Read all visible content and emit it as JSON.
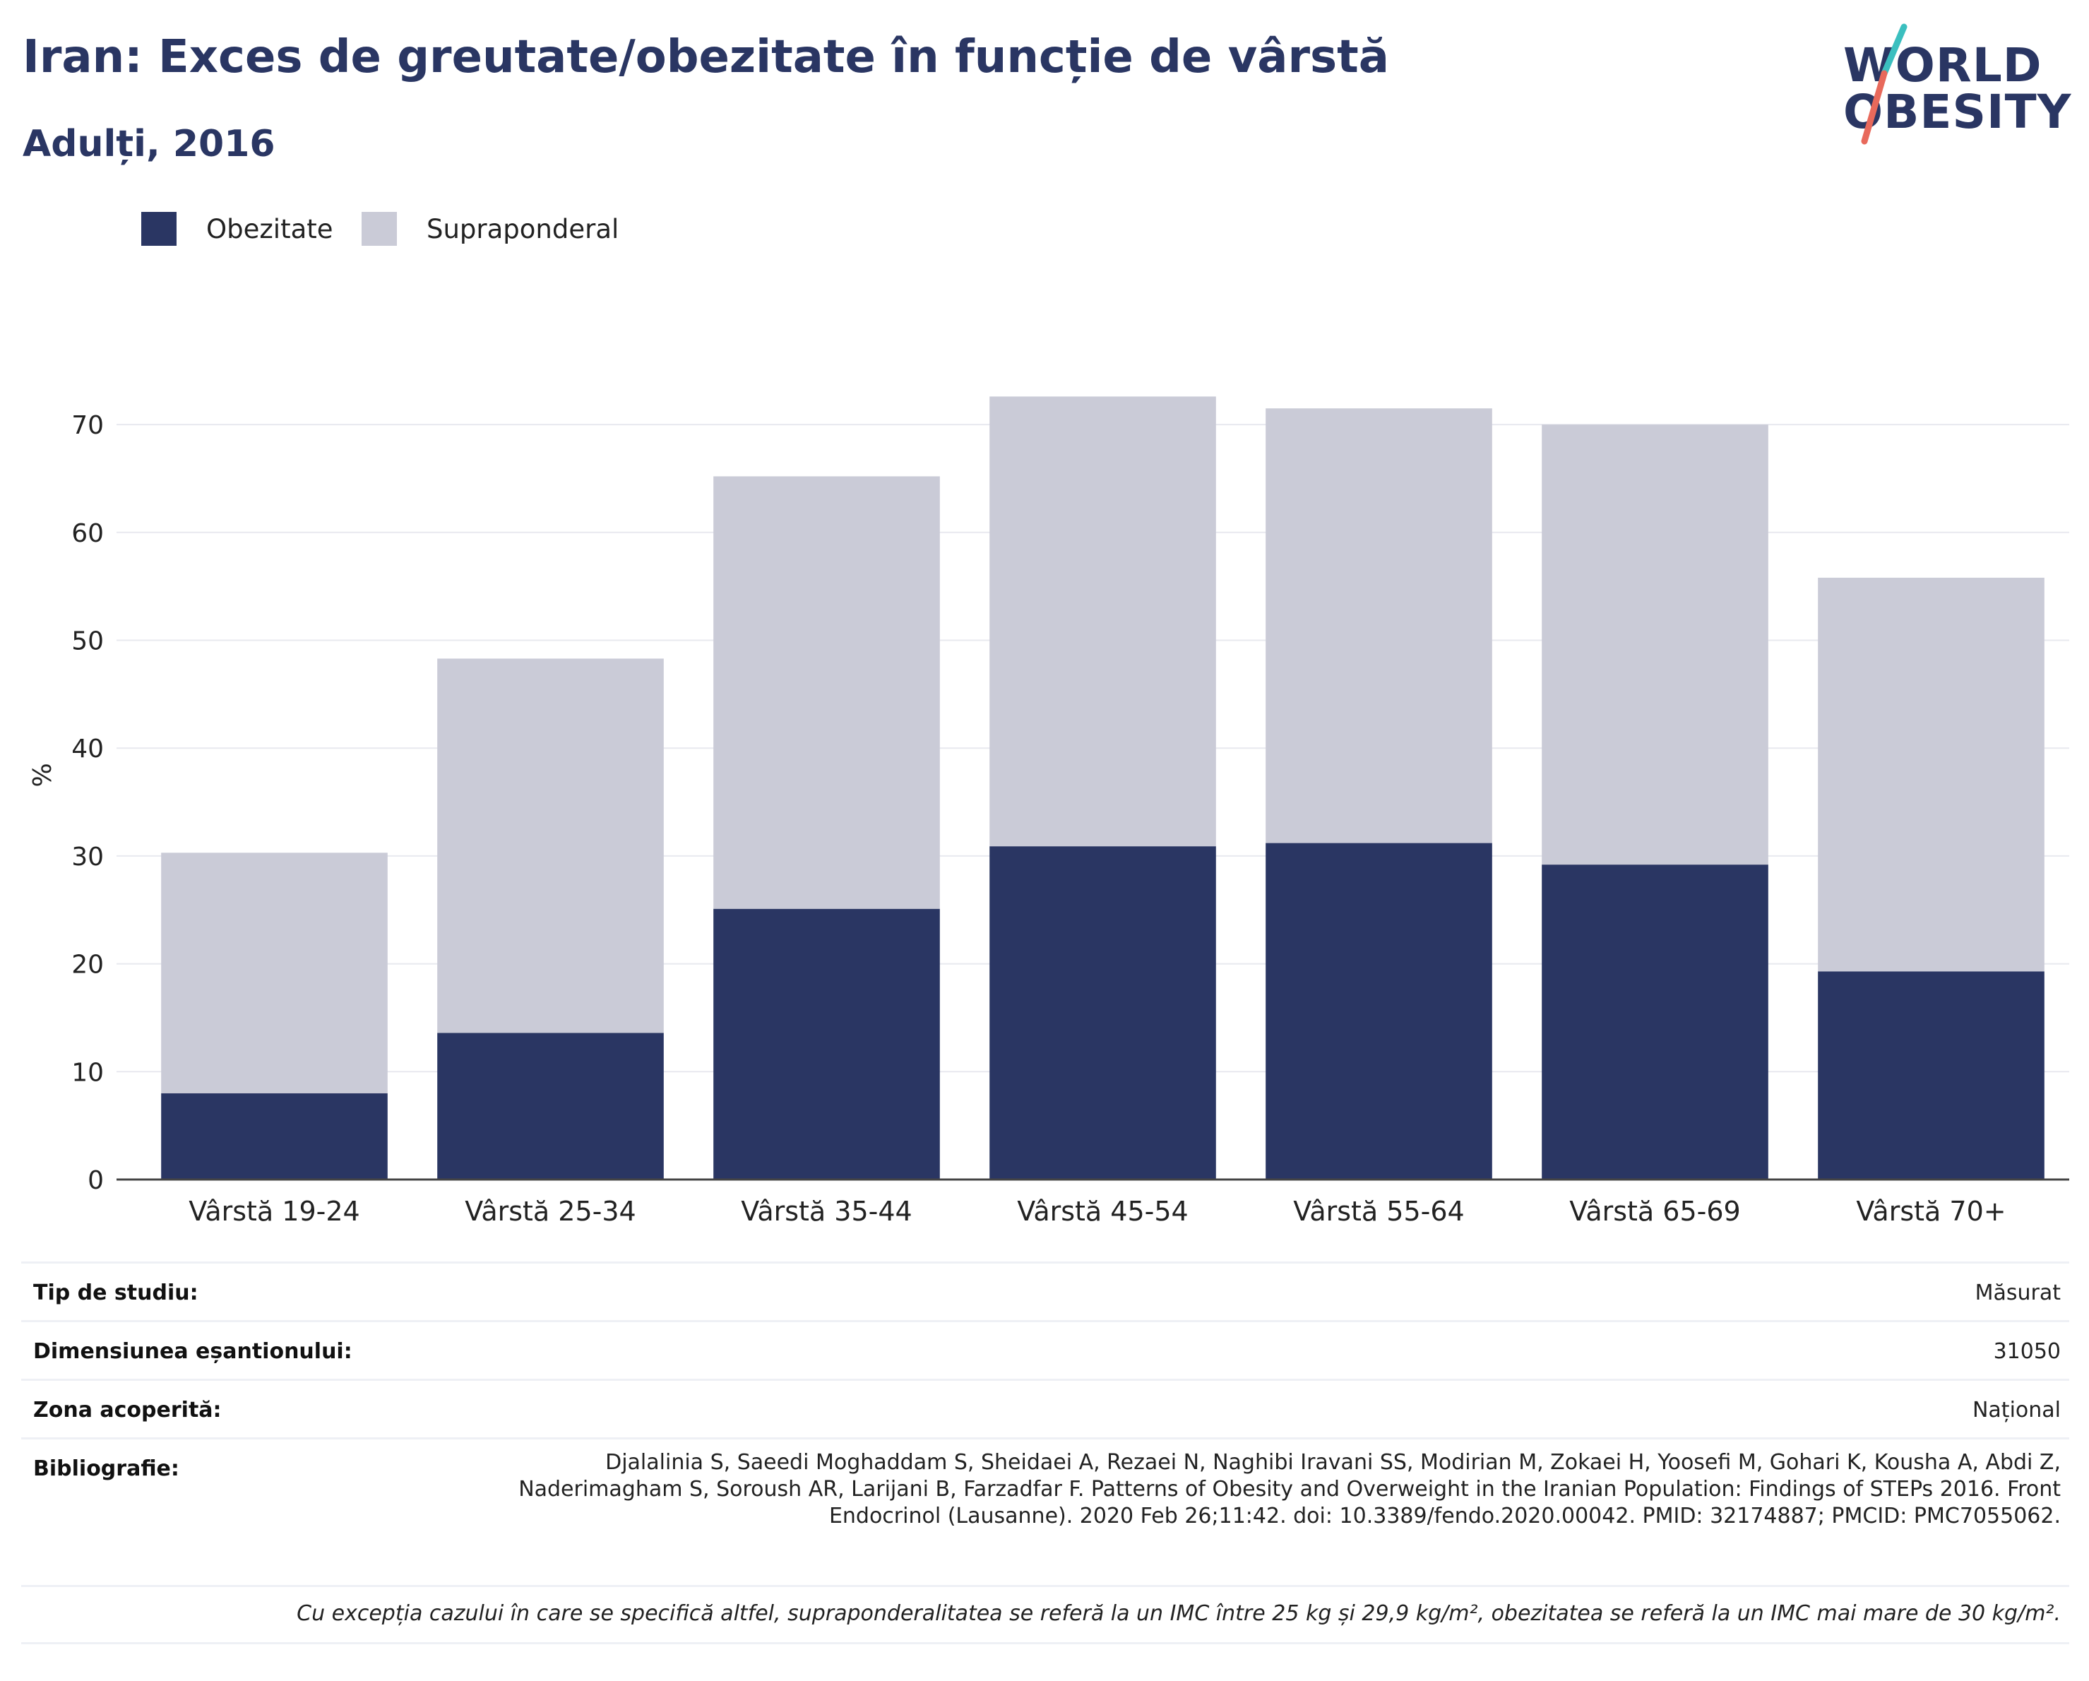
{
  "header": {
    "title": "Iran: Exces de greutate/obezitate în funcție de vârstă",
    "subtitle": "Adulți, 2016",
    "logo_line1": "WORLD",
    "logo_line2": "OBESITY"
  },
  "legend": {
    "items": [
      {
        "label": "Obezitate",
        "color": "#2a3663"
      },
      {
        "label": "Supraponderal",
        "color": "#cacbd7"
      }
    ]
  },
  "chart_data": {
    "type": "bar",
    "stacked": true,
    "title": "Iran: Exces de greutate/obezitate în funcție de vârstă",
    "subtitle": "Adulți, 2016",
    "ylabel": "%",
    "xlabel": "",
    "ylim": [
      0,
      75
    ],
    "yticks": [
      0,
      10,
      20,
      30,
      40,
      50,
      60,
      70
    ],
    "grid": true,
    "legend_position": "top-left",
    "categories": [
      "Vârstă 19-24",
      "Vârstă 25-34",
      "Vârstă 35-44",
      "Vârstă 45-54",
      "Vârstă 55-64",
      "Vârstă 65-69",
      "Vârstă 70+"
    ],
    "series": [
      {
        "name": "Obezitate",
        "color": "#2a3663",
        "values": [
          8.0,
          13.6,
          25.1,
          30.9,
          31.2,
          29.2,
          19.3
        ]
      },
      {
        "name": "Supraponderal",
        "color": "#cacbd7",
        "values": [
          22.3,
          34.7,
          40.1,
          41.7,
          40.3,
          40.8,
          36.5
        ]
      }
    ]
  },
  "info_table": {
    "rows": [
      {
        "label": "Tip de studiu:",
        "value": "Măsurat"
      },
      {
        "label": "Dimensiunea eșantionului:",
        "value": "31050"
      },
      {
        "label": "Zona acoperită:",
        "value": "Național"
      },
      {
        "label": "Bibliografie:",
        "value": "Djalalinia S, Saeedi Moghaddam S, Sheidaei A, Rezaei N, Naghibi Iravani SS, Modirian M, Zokaei H, Yoosefi M, Gohari K, Kousha A, Abdi Z, Naderimagham S, Soroush AR, Larijani B, Farzadfar F. Patterns of Obesity and Overweight in the Iranian Population: Findings of STEPs 2016. Front Endocrinol (Lausanne). 2020 Feb 26;11:42. doi: 10.3389/fendo.2020.00042. PMID: 32174887; PMCID: PMC7055062."
      }
    ],
    "footnote": "Cu excepția cazului în care se specifică altfel, supraponderalitatea se referă la un IMC între 25 kg și 29,9 kg/m², obezitatea se referă la un IMC mai mare de 30 kg/m²."
  }
}
